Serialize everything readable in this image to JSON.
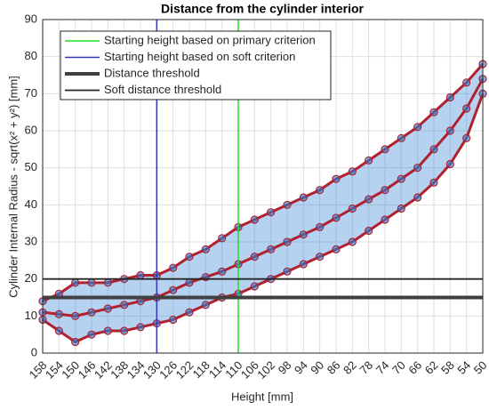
{
  "chart_data": {
    "type": "scatter",
    "title": "Distance from the cylinder interior",
    "x_label": "Height [mm]",
    "y_label": "Cylinder Internal Radius - sqrt(x² + y²) [mm]",
    "x": [
      158,
      154,
      150,
      146,
      142,
      138,
      134,
      130,
      126,
      122,
      118,
      114,
      110,
      106,
      102,
      98,
      94,
      90,
      86,
      82,
      78,
      74,
      70,
      66,
      62,
      58,
      54,
      50
    ],
    "series": [
      {
        "color": "#b0202e",
        "values": [
          14,
          16,
          19,
          19,
          19,
          20,
          21,
          21,
          23,
          26,
          28,
          31,
          34,
          36,
          38,
          40,
          42,
          44,
          47,
          49,
          52,
          55,
          58,
          61,
          65,
          69,
          73,
          78
        ]
      },
      {
        "color": "#b0202e",
        "values": [
          11,
          10.5,
          10,
          11,
          12,
          13,
          14,
          15,
          17,
          19,
          20.5,
          22,
          24,
          26,
          28,
          30,
          32,
          34,
          36.5,
          39,
          41.5,
          44,
          47,
          50,
          55,
          60,
          66,
          74
        ]
      },
      {
        "color": "#b0202e",
        "values": [
          9,
          6,
          3,
          5,
          6,
          6,
          7,
          8,
          9,
          11,
          13,
          15,
          16,
          18,
          20,
          22,
          24,
          26,
          28,
          30,
          33,
          36,
          39,
          42,
          46,
          51,
          58,
          70
        ]
      }
    ],
    "marker_color": "#2a7fd4",
    "reference_lines": [
      {
        "name": "Starting height based on primary criterion",
        "color": "#22dd22",
        "orientation": "vertical",
        "value": 110,
        "width": 1.5
      },
      {
        "name": "Starting height based on soft criterion",
        "color": "#3535c0",
        "orientation": "vertical",
        "value": 130,
        "width": 1.5
      },
      {
        "name": "Distance threshold",
        "color": "#404040",
        "orientation": "horizontal",
        "value": 15,
        "width": 4
      },
      {
        "name": "Soft distance threshold",
        "color": "#262626",
        "orientation": "horizontal",
        "value": 20,
        "width": 1.8
      }
    ],
    "xlim": [
      158,
      50
    ],
    "xticks": [
      158,
      154,
      150,
      146,
      142,
      138,
      134,
      130,
      126,
      122,
      118,
      114,
      110,
      106,
      102,
      98,
      94,
      90,
      86,
      82,
      78,
      74,
      70,
      66,
      62,
      58,
      54,
      50
    ],
    "ylim": [
      0,
      90
    ],
    "yticks": [
      0,
      10,
      20,
      30,
      40,
      50,
      60,
      70,
      80,
      90
    ],
    "grid": true,
    "legend": "upper left"
  }
}
